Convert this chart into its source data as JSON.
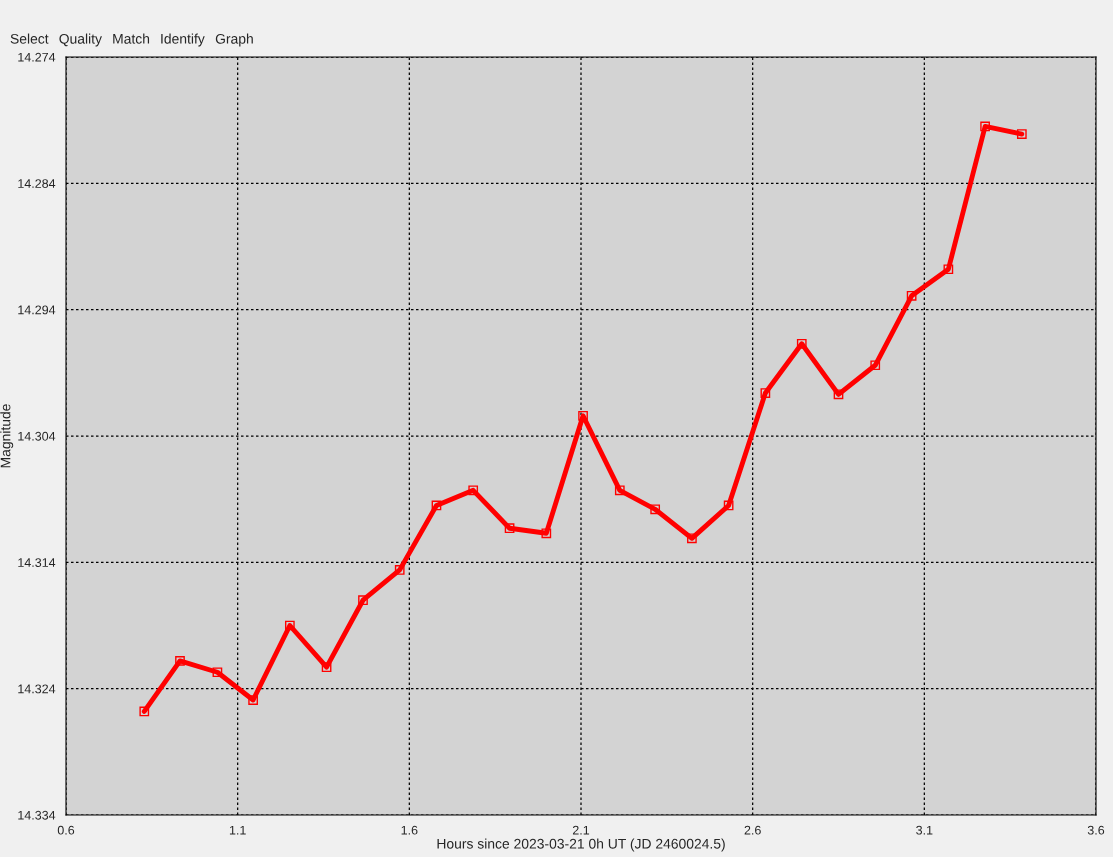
{
  "chart_data": {
    "type": "line",
    "xlabel": "Hours since 2023-03-21 0h UT (JD 2460024.5)",
    "ylabel": "Magnitude",
    "annotations": [
      "Select",
      "Quality",
      "Match",
      "Identify",
      "Graph"
    ],
    "x": [
      0.828,
      0.932,
      1.041,
      1.145,
      1.252,
      1.359,
      1.465,
      1.572,
      1.679,
      1.786,
      1.892,
      1.999,
      2.106,
      2.213,
      2.316,
      2.423,
      2.53,
      2.637,
      2.743,
      2.85,
      2.957,
      3.063,
      3.17,
      3.277,
      3.384
    ],
    "series": [
      {
        "color": "#ff0000",
        "values": [
          14.3258,
          14.3218,
          14.3227,
          14.3249,
          14.319,
          14.3223,
          14.317,
          14.3146,
          14.3095,
          14.3083,
          14.3113,
          14.3117,
          14.3024,
          14.3083,
          14.3098,
          14.3121,
          14.3095,
          14.3006,
          14.2967,
          14.3007,
          14.2984,
          14.2929,
          14.2908,
          14.2795,
          14.2801
        ]
      }
    ],
    "xlim": [
      0.6,
      3.6
    ],
    "xticks": [
      0.6,
      1.1,
      1.6,
      2.1,
      2.6,
      3.1,
      3.6
    ],
    "ylim": [
      14.334,
      14.274
    ],
    "yticks": [
      14.274,
      14.284,
      14.294,
      14.304,
      14.314,
      14.324,
      14.334
    ],
    "grid": true,
    "marker": "square",
    "line_style": "solid",
    "legend": false
  }
}
